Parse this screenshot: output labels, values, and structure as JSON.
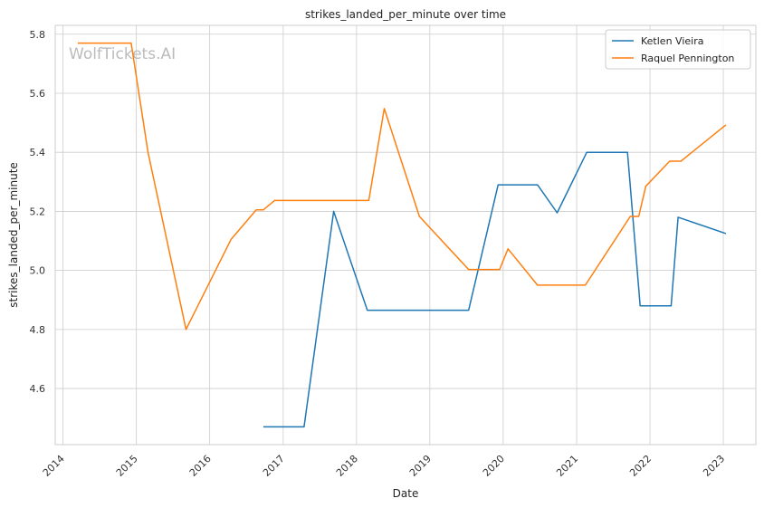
{
  "chart_data": {
    "type": "line",
    "title": "strikes_landed_per_minute over time",
    "xlabel": "Date",
    "ylabel": "strikes_landed_per_minute",
    "watermark": "WolfTickets.AI",
    "x_ticks": [
      "2014",
      "2015",
      "2016",
      "2017",
      "2018",
      "2019",
      "2020",
      "2021",
      "2022",
      "2023"
    ],
    "y_ticks": [
      "4.6",
      "4.8",
      "5.0",
      "5.2",
      "5.4",
      "5.6",
      "5.8"
    ],
    "xlim": [
      "2013-11-23",
      "2023-06-12"
    ],
    "ylim": [
      4.41,
      5.83
    ],
    "grid": true,
    "legend_position": "top-right",
    "series": [
      {
        "name": "Ketlen Vieira",
        "color": "#1f77b4",
        "points": [
          [
            "2016-09-24",
            4.47
          ],
          [
            "2017-04-15",
            4.47
          ],
          [
            "2017-09-09",
            5.2
          ],
          [
            "2018-02-24",
            4.865
          ],
          [
            "2019-07-13",
            4.865
          ],
          [
            "2019-12-07",
            5.29
          ],
          [
            "2020-06-20",
            5.29
          ],
          [
            "2020-09-26",
            5.195
          ],
          [
            "2021-02-20",
            5.4
          ],
          [
            "2021-09-11",
            5.4
          ],
          [
            "2021-11-13",
            4.88
          ],
          [
            "2022-04-16",
            4.88
          ],
          [
            "2022-05-21",
            5.18
          ],
          [
            "2023-01-14",
            5.125
          ]
        ]
      },
      {
        "name": "Raquel Pennington",
        "color": "#ff7f0e",
        "points": [
          [
            "2014-03-15",
            5.77
          ],
          [
            "2014-12-06",
            5.77
          ],
          [
            "2015-02-28",
            5.4
          ],
          [
            "2015-09-05",
            4.8
          ],
          [
            "2016-04-16",
            5.105
          ],
          [
            "2016-08-20",
            5.205
          ],
          [
            "2016-09-24",
            5.205
          ],
          [
            "2016-11-19",
            5.237
          ],
          [
            "2018-03-03",
            5.237
          ],
          [
            "2018-05-19",
            5.548
          ],
          [
            "2018-11-10",
            5.183
          ],
          [
            "2019-07-13",
            5.003
          ],
          [
            "2019-12-14",
            5.003
          ],
          [
            "2020-01-25",
            5.073
          ],
          [
            "2020-06-20",
            4.95
          ],
          [
            "2021-02-13",
            4.95
          ],
          [
            "2021-09-25",
            5.183
          ],
          [
            "2021-11-06",
            5.183
          ],
          [
            "2021-12-11",
            5.285
          ],
          [
            "2022-04-09",
            5.37
          ],
          [
            "2022-06-04",
            5.37
          ],
          [
            "2023-01-14",
            5.493
          ]
        ]
      }
    ]
  }
}
